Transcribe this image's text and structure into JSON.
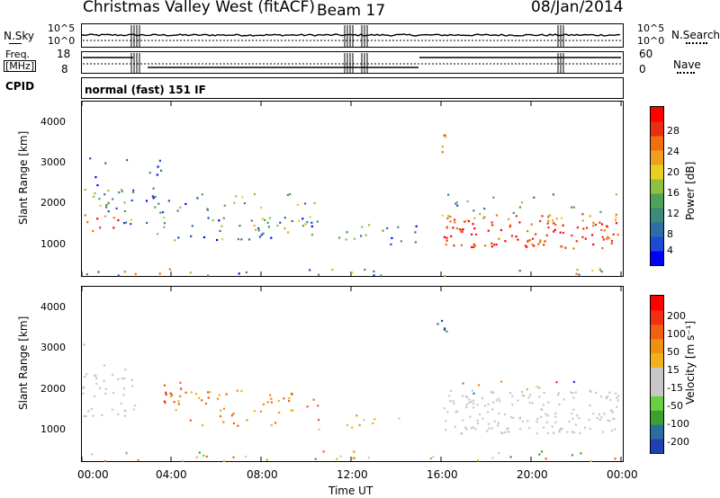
{
  "header": {
    "station": "Christmas Valley West (fitACF)",
    "beam": "Beam 17",
    "date": "08/Jan/2014"
  },
  "panels": {
    "nsky_label": "N.Sky",
    "nsky_ticks": [
      "10^5",
      "10^0"
    ],
    "nsearch_label": "N.Search",
    "nsearch_ticks": [
      "10^5",
      "10^0"
    ],
    "freq_label_1": "Freq.",
    "freq_label_2": "[MHz]",
    "freq_ticks": [
      "18",
      "8"
    ],
    "nave_label": "Nave",
    "nave_ticks": [
      "60",
      "0"
    ],
    "cpid_label": "CPID",
    "cpid_text": "normal (fast) 151 IF"
  },
  "chart_data": [
    {
      "type": "heatmap",
      "name": "power",
      "xlabel": "Time UT",
      "ylabel": "Slant Range [km]",
      "ylim": [
        180,
        4600
      ],
      "yticks": [
        "1000",
        "2000",
        "3000",
        "4000"
      ],
      "xticks": [
        "00:00",
        "04:00",
        "08:00",
        "12:00",
        "16:00",
        "20:00",
        "00:00"
      ],
      "colorbar": {
        "label": "Power [dB]",
        "ticks": [
          "28",
          "24",
          "20",
          "16",
          "12",
          "8",
          "4"
        ],
        "colors": [
          "#0000ff",
          "#1e4bd2",
          "#2e6ea6",
          "#3e8a7a",
          "#4fa05a",
          "#8fc040",
          "#e8d020",
          "#f0a020",
          "#f07010",
          "#e83010",
          "#ff0000"
        ]
      }
    },
    {
      "type": "heatmap",
      "name": "velocity",
      "xlabel": "Time UT",
      "ylabel": "Slant Range [km]",
      "ylim": [
        180,
        4600
      ],
      "yticks": [
        "1000",
        "2000",
        "3000",
        "4000"
      ],
      "xticks": [
        "00:00",
        "04:00",
        "08:00",
        "12:00",
        "16:00",
        "20:00",
        "00:00"
      ],
      "colorbar": {
        "label": "Velocity [m s⁻¹]",
        "ticks": [
          "200",
          "100",
          "50",
          "15",
          "-15",
          "-50",
          "-100",
          "-200"
        ],
        "colors": [
          "#2040b0",
          "#2a6ea0",
          "#3aa030",
          "#66d040",
          "#c8c8c8",
          "#c8c8c8",
          "#f0b020",
          "#f09010",
          "#f06010",
          "#f03010",
          "#ff0000"
        ]
      }
    }
  ]
}
